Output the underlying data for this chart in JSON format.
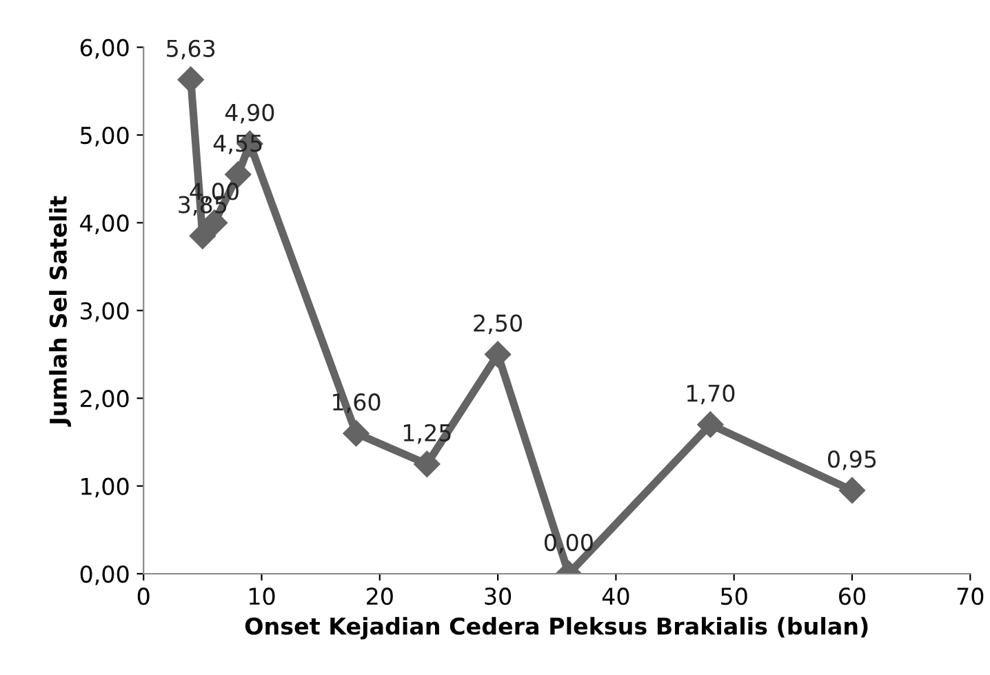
{
  "chart_data": {
    "type": "line",
    "xlabel": "Onset Kejadian Cedera Pleksus Brakialis (bulan)",
    "ylabel": "Jumlah Sel Satelit",
    "x": [
      4,
      5,
      6,
      8,
      9,
      18,
      24,
      30,
      36,
      48,
      60
    ],
    "series": [
      {
        "color": "#646464",
        "values": [
          5.63,
          3.85,
          4.0,
          4.55,
          4.9,
          1.6,
          1.25,
          2.5,
          0.0,
          1.7,
          0.95
        ],
        "value_labels": [
          "5,63",
          "3,85",
          "4,00",
          "4,55",
          "4,90",
          "1,60",
          "1,25",
          "2,50",
          "0,00",
          "1,70",
          "0,95"
        ]
      }
    ],
    "xlim": [
      0,
      70
    ],
    "xticks": [
      0,
      10,
      20,
      30,
      40,
      50,
      60,
      70
    ],
    "ylim": [
      0,
      6
    ],
    "yticks": [
      {
        "value": 0,
        "label": "0,00"
      },
      {
        "value": 1,
        "label": "1,00"
      },
      {
        "value": 2,
        "label": "2,00"
      },
      {
        "value": 3,
        "label": "3,00"
      },
      {
        "value": 4,
        "label": "4,00"
      },
      {
        "value": 5,
        "label": "5,00"
      },
      {
        "value": 6,
        "label": "6,00"
      }
    ],
    "marker": "diamond",
    "line_style": "solid",
    "grid": false,
    "legend": false
  }
}
